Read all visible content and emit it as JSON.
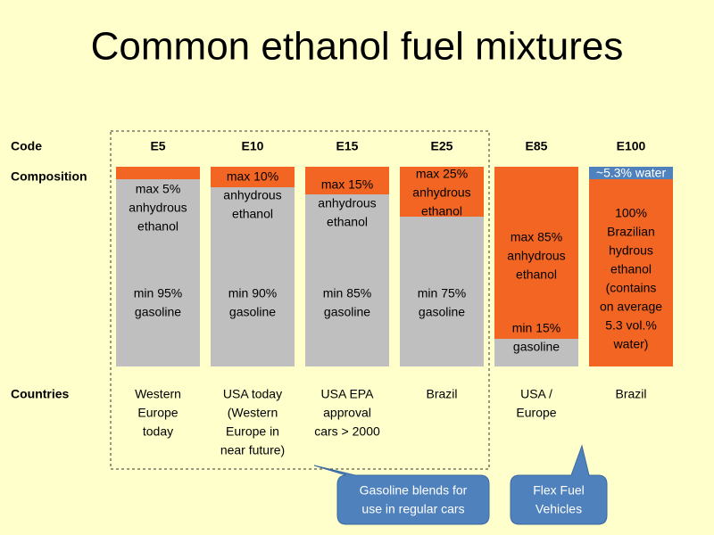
{
  "title": "Common ethanol fuel mixtures",
  "row_labels": {
    "code": "Code",
    "composition": "Composition",
    "countries": "Countries"
  },
  "columns": [
    {
      "code": "E5",
      "blocks": [
        [
          "max 5%",
          "anhydrous",
          "ethanol"
        ],
        [
          "min 95%",
          "gasoline"
        ]
      ],
      "countries": [
        "Western",
        "Europe",
        "today"
      ]
    },
    {
      "code": "E10",
      "blocks": [
        [
          "max 10%",
          "anhydrous",
          "ethanol"
        ],
        [
          "min 90%",
          "gasoline"
        ]
      ],
      "countries": [
        "USA today",
        "(Western",
        "Europe in",
        "near future)"
      ]
    },
    {
      "code": "E15",
      "blocks": [
        [
          "max 15%",
          "anhydrous",
          "ethanol"
        ],
        [
          "min 85%",
          "gasoline"
        ]
      ],
      "countries": [
        "USA EPA",
        "approval",
        "cars > 2000"
      ]
    },
    {
      "code": "E25",
      "blocks": [
        [
          "max 25%",
          "anhydrous",
          "ethanol"
        ],
        [
          "min 75%",
          "gasoline"
        ]
      ],
      "countries": [
        "Brazil"
      ]
    },
    {
      "code": "E85",
      "blocks": [
        [
          "max 85%",
          "anhydrous",
          "ethanol"
        ],
        [
          "min 15%",
          "gasoline"
        ]
      ],
      "countries": [
        "USA /",
        "Europe"
      ]
    },
    {
      "code": "E100",
      "blocks": [
        [
          "~5.3% water"
        ],
        [
          "100%",
          "Brazilian",
          "hydrous",
          "ethanol",
          "(contains",
          "on average",
          "5.3 vol.%",
          "water)"
        ]
      ],
      "countries": [
        "Brazil"
      ]
    }
  ],
  "callouts": [
    [
      "Gasoline blends for",
      "use in regular cars"
    ],
    [
      "Flex Fuel",
      "Vehicles"
    ]
  ]
}
